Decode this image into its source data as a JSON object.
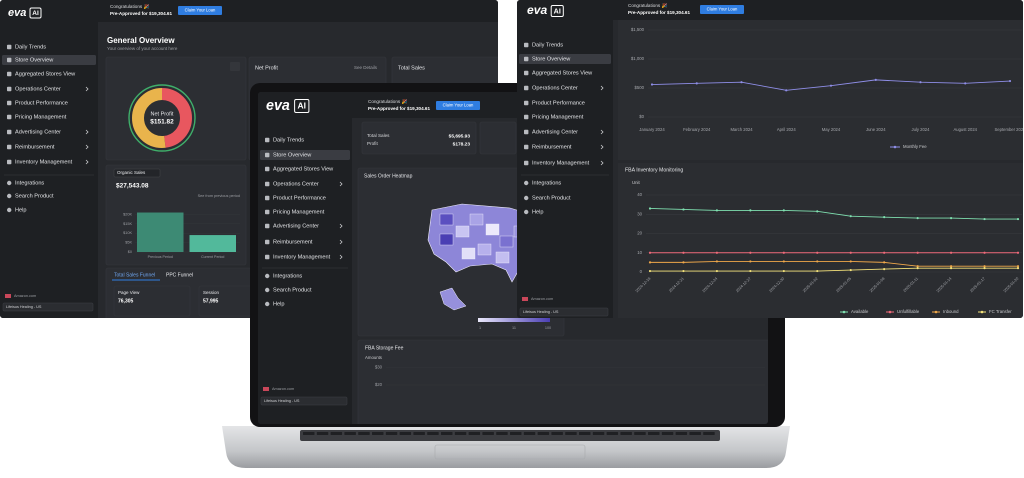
{
  "logo": {
    "name": "eva",
    "badge": "AI"
  },
  "banner": {
    "title": "Congratulations 🎉",
    "text": "Pre-Approved for $19,304.61",
    "button": "Claim Your Loan"
  },
  "sidebar": {
    "items": [
      "Daily Trends",
      "Store Overview",
      "Aggregated Stores View",
      "Operations Center",
      "Product Performance",
      "Pricing Management",
      "Advertising Center",
      "Reimbursement",
      "Inventory Management"
    ],
    "tools": [
      "Integrations",
      "Search Product",
      "Help"
    ],
    "store": "Amazon.com",
    "account": "Lifeisus Healing - US"
  },
  "overview": {
    "title": "General Overview",
    "subtitle": "Your overview of your account here",
    "donut_label": "Net Profit",
    "donut_value": "$151.82",
    "donut": [
      {
        "color": "#e8575f",
        "value": 48
      },
      {
        "color": "#e9b44c",
        "value": 52
      }
    ],
    "net_profit_card": {
      "title": "Net Profit",
      "link": "See Details"
    },
    "total_sales_card": {
      "title": "Total Sales"
    },
    "organic": {
      "select": "Organic Sales",
      "value": "$27,543.08",
      "compare": "See from previous period",
      "categories": [
        "Previous Period",
        "Current Period"
      ],
      "values": [
        21000,
        9000
      ],
      "colors": [
        "#3d8a74",
        "#52b99b"
      ],
      "ylim": [
        0,
        25000
      ],
      "yticks": [
        {
          "value": 0,
          "label": "$0"
        },
        {
          "value": 5000,
          "label": "$5K"
        },
        {
          "value": 10000,
          "label": "$10K"
        },
        {
          "value": 15000,
          "label": "$15K"
        },
        {
          "value": 20000,
          "label": "$20K"
        }
      ]
    },
    "tabs": [
      "Total Sales Funnel",
      "PPC Funnel"
    ],
    "funnel": [
      {
        "label": "Page View",
        "value": "76,305"
      },
      {
        "label": "Session",
        "value": "57,995"
      }
    ]
  },
  "laptop": {
    "cards": [
      {
        "label": "Total Sales",
        "value": "$5,695.93"
      },
      {
        "label": "Profit",
        "value": "$178.23"
      }
    ],
    "heatmap": {
      "title": "Sales Order Heatmap",
      "legend": [
        "1",
        "11",
        "100"
      ]
    },
    "storage": {
      "title": "FBA Storage Fee",
      "axis": "Amounts",
      "ylim": [
        0,
        40
      ],
      "yticks": [
        {
          "value": 30,
          "label": "$30"
        },
        {
          "value": 20,
          "label": "$20"
        }
      ]
    }
  },
  "monthly_fee": {
    "type": "line",
    "categories": [
      "January 2024",
      "February 2024",
      "March 2024",
      "April 2024",
      "May 2024",
      "June 2024",
      "July 2024",
      "August 2024",
      "September 2024"
    ],
    "series": [
      {
        "name": "Monthly Fee",
        "color": "#8f8ee8",
        "values": [
          560,
          580,
          600,
          460,
          540,
          640,
          600,
          580,
          620
        ]
      }
    ],
    "ylim": [
      0,
      1500
    ],
    "yticks": [
      {
        "value": 0,
        "label": "$0"
      },
      {
        "value": 500,
        "label": "$500"
      },
      {
        "value": 1000,
        "label": "$1,000"
      },
      {
        "value": 1500,
        "label": "$1,500"
      }
    ],
    "grid": true
  },
  "inventory": {
    "type": "line",
    "title": "FBA Inventory Monitoring",
    "y_label": "Unit",
    "categories": [
      "2024-12-18",
      "2024-12-21",
      "2024-12-24",
      "2024-12-27",
      "2024-12-30",
      "2025-01-02",
      "2025-01-05",
      "2025-01-08",
      "2025-01-11",
      "2025-01-14",
      "2025-01-17",
      "2025-01-20"
    ],
    "series": [
      {
        "name": "Available",
        "color": "#7fe0b0",
        "values": [
          33,
          32.5,
          32,
          32,
          32,
          31.5,
          29,
          28.5,
          28,
          28,
          27.5,
          27.5
        ]
      },
      {
        "name": "Unfulfillable",
        "color": "#f06a7a",
        "values": [
          10,
          10,
          10,
          10,
          10,
          10,
          10,
          10,
          10,
          10,
          10,
          10
        ]
      },
      {
        "name": "Inbound",
        "color": "#f0a84a",
        "values": [
          5,
          5,
          5.5,
          5.5,
          5.5,
          5.5,
          5.5,
          5,
          3,
          3,
          3,
          3
        ]
      },
      {
        "name": "FC Transfer",
        "color": "#f4e27a",
        "values": [
          0.5,
          0.5,
          0.5,
          0.5,
          0.5,
          0.5,
          1,
          1.5,
          2,
          2,
          2,
          2
        ]
      }
    ],
    "ylim": [
      0,
      40
    ],
    "yticks": [
      0,
      10,
      20,
      30,
      40
    ],
    "grid": true
  }
}
